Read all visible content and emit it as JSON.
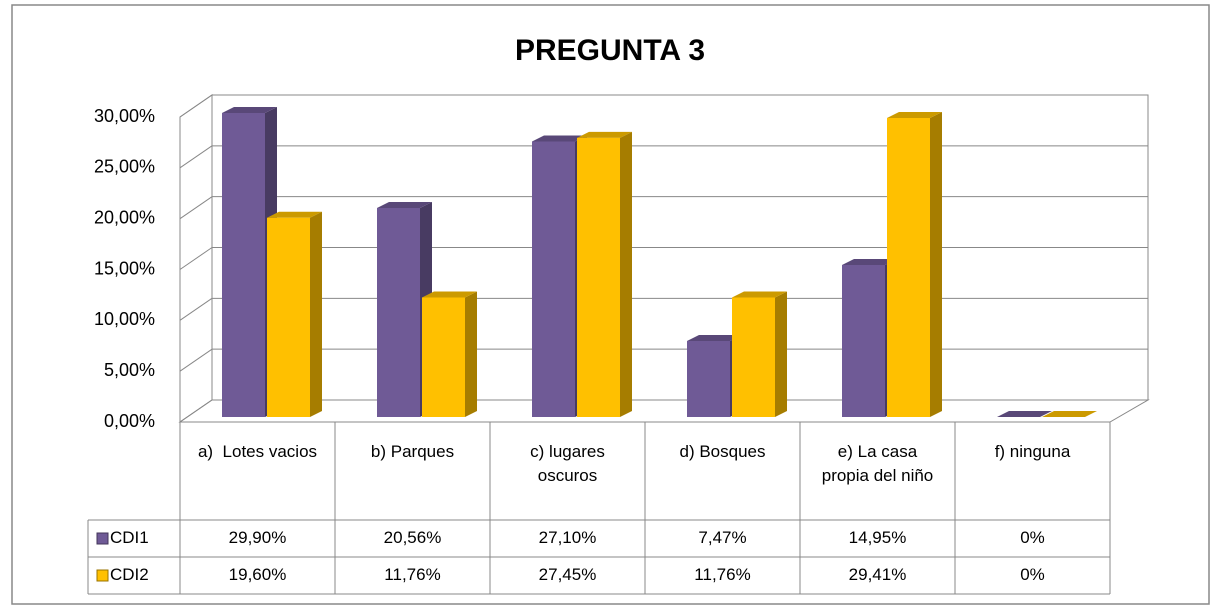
{
  "chart_data": {
    "type": "bar3d",
    "title": "PREGUNTA 3",
    "categories": [
      "a)  Lotes vacios",
      "b) Parques",
      "c) lugares oscuros",
      "d) Bosques",
      "e) La casa propia del niño",
      "f) ninguna"
    ],
    "series": [
      {
        "name": "CDI1",
        "color": "#6f5a96",
        "values": [
          29.9,
          20.56,
          27.1,
          7.47,
          14.95,
          0
        ],
        "value_labels": [
          "29,90%",
          "20,56%",
          "27,10%",
          "7,47%",
          "14,95%",
          "0%"
        ]
      },
      {
        "name": "CDI2",
        "color": "#ffc000",
        "values": [
          19.6,
          11.76,
          27.45,
          11.76,
          29.41,
          0
        ],
        "value_labels": [
          "19,60%",
          "11,76%",
          "27,45%",
          "11,76%",
          "29,41%",
          "0%"
        ]
      }
    ],
    "ylim": [
      0,
      30
    ],
    "yticks": [
      {
        "value": 0,
        "label": "0,00%"
      },
      {
        "value": 5,
        "label": "5,00%"
      },
      {
        "value": 10,
        "label": "10,00%"
      },
      {
        "value": 15,
        "label": "15,00%"
      },
      {
        "value": 20,
        "label": "20,00%"
      },
      {
        "value": 25,
        "label": "25,00%"
      },
      {
        "value": 30,
        "label": "30,00%"
      }
    ],
    "grid": true
  }
}
